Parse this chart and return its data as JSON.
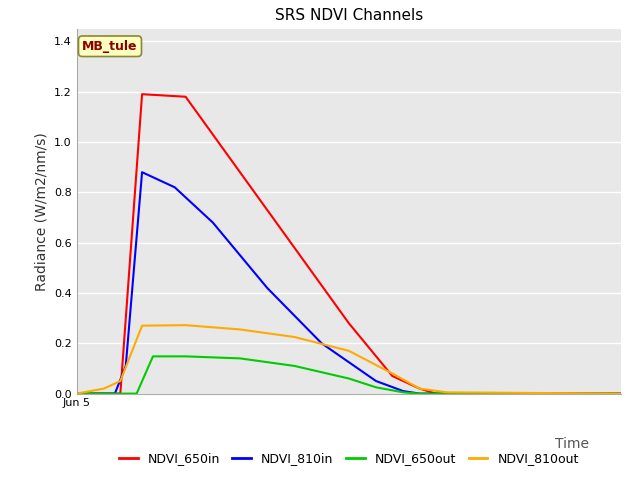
{
  "title": "SRS NDVI Channels",
  "xlabel": "Time",
  "ylabel": "Radiance (W/m2/nm/s)",
  "annotation": "MB_tule",
  "annotation_color": "#8B0000",
  "annotation_bg": "#FFFFC0",
  "annotation_edge": "#888833",
  "ylim": [
    0.0,
    1.45
  ],
  "xlim": [
    0,
    100
  ],
  "plot_bg_color": "#e8e8e8",
  "fig_bg_color": "#ffffff",
  "grid_color": "#ffffff",
  "series": {
    "NDVI_650in": {
      "color": "#ff0000",
      "x": [
        0,
        8,
        12,
        20,
        30,
        40,
        50,
        58,
        63,
        66,
        100
      ],
      "y": [
        0.0,
        0.0,
        1.19,
        1.18,
        0.88,
        0.58,
        0.28,
        0.07,
        0.02,
        0.0,
        0.0
      ]
    },
    "NDVI_810in": {
      "color": "#0000ff",
      "x": [
        0,
        7,
        9,
        12,
        18,
        25,
        35,
        45,
        55,
        60,
        63,
        100
      ],
      "y": [
        0.0,
        0.0,
        0.11,
        0.88,
        0.82,
        0.68,
        0.42,
        0.2,
        0.05,
        0.01,
        0.0,
        0.0
      ]
    },
    "NDVI_650out": {
      "color": "#00cc00",
      "x": [
        0,
        11,
        14,
        20,
        30,
        40,
        50,
        55,
        60,
        63,
        100
      ],
      "y": [
        0.0,
        0.0,
        0.148,
        0.148,
        0.14,
        0.11,
        0.06,
        0.025,
        0.005,
        0.0,
        0.0
      ]
    },
    "NDVI_810out": {
      "color": "#ffaa00",
      "x": [
        0,
        5,
        8,
        12,
        20,
        30,
        40,
        50,
        58,
        63,
        68,
        100
      ],
      "y": [
        0.0,
        0.02,
        0.05,
        0.27,
        0.272,
        0.255,
        0.225,
        0.17,
        0.08,
        0.02,
        0.005,
        0.0
      ]
    }
  },
  "x_tick_label": "Jun 5",
  "x_tick_pos": 0,
  "title_fontsize": 11,
  "axis_fontsize": 10,
  "legend_fontsize": 9,
  "yticks": [
    0.0,
    0.2,
    0.4,
    0.6,
    0.8,
    1.0,
    1.2,
    1.4
  ]
}
